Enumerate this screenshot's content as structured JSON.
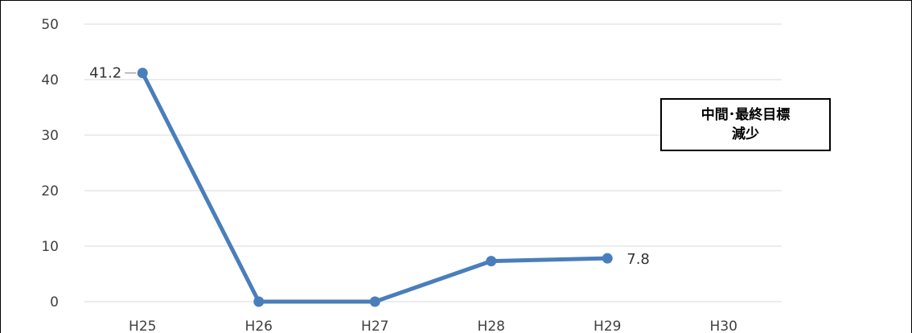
{
  "chart_data": {
    "type": "line",
    "categories": [
      "H25",
      "H26",
      "H27",
      "H28",
      "H29",
      "H30"
    ],
    "series": [
      {
        "values": [
          41.2,
          0,
          0,
          7.3,
          7.8,
          null
        ]
      }
    ],
    "data_labels": [
      {
        "category": "H25",
        "text": "41.2"
      },
      {
        "category": "H29",
        "text": "7.8"
      }
    ],
    "y_ticks": [
      "0",
      "10",
      "20",
      "30",
      "40",
      "50"
    ],
    "ylim": [
      0,
      50
    ],
    "grid": true,
    "line_color": "#4A7EBB",
    "title": "",
    "xlabel": "",
    "ylabel": ""
  },
  "annotation": {
    "line1": "中間･最終目標",
    "line2": "減少"
  }
}
